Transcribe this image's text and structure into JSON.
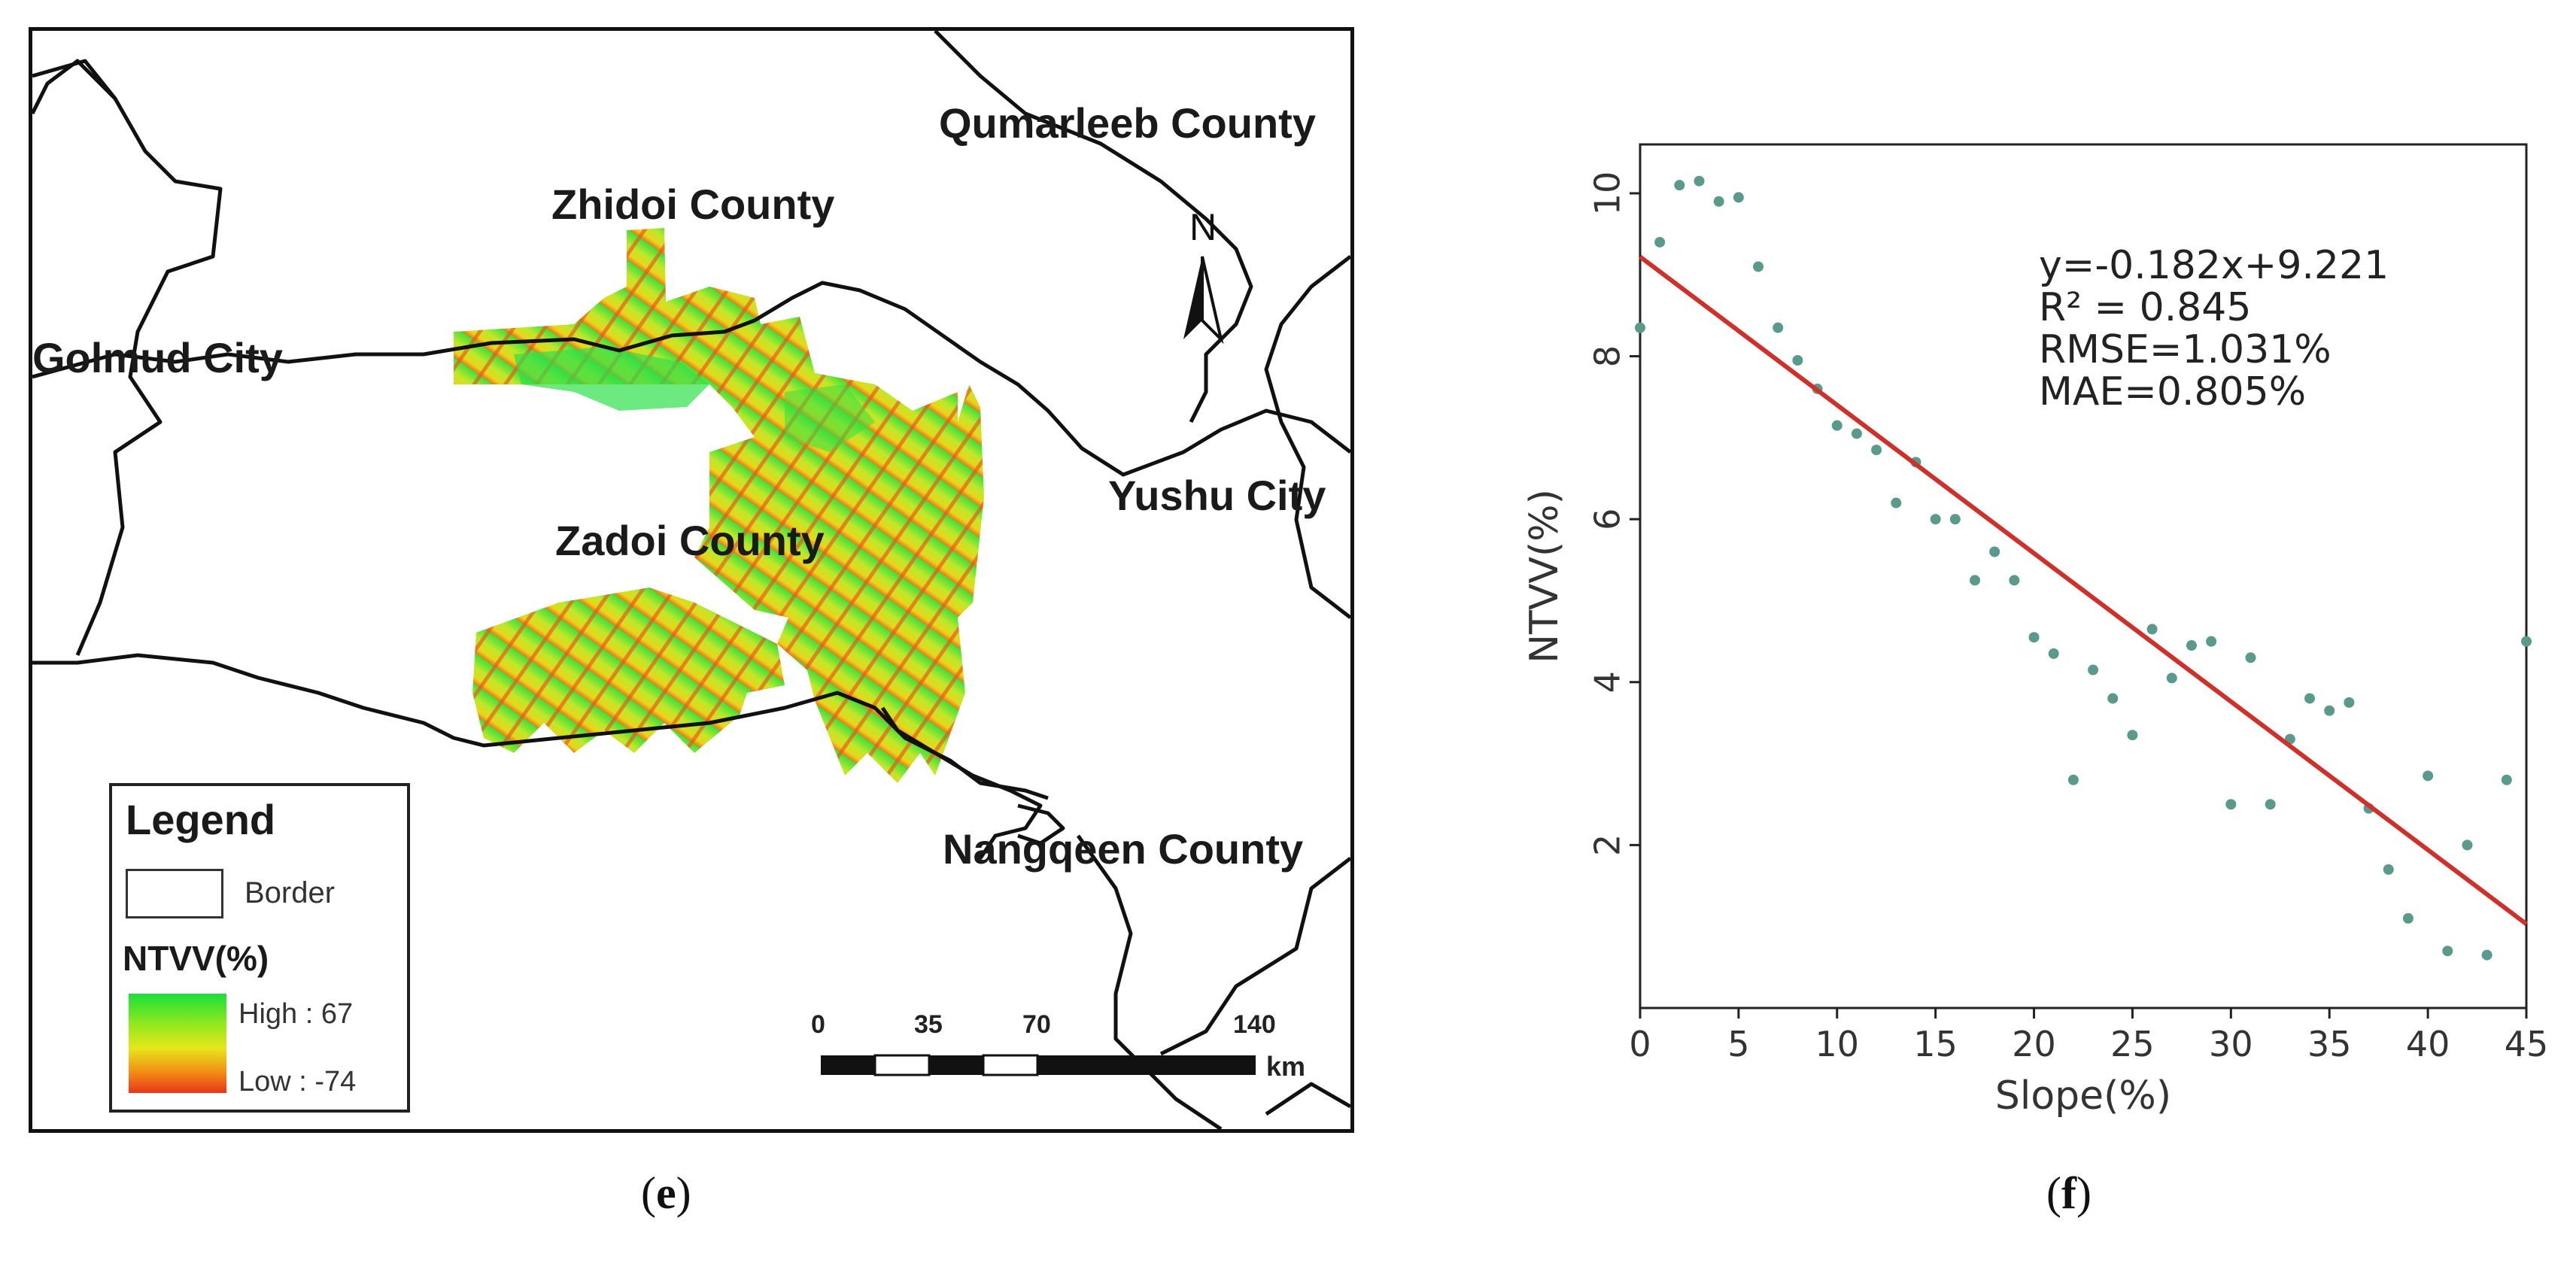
{
  "map_panel": {
    "caption_open": "(",
    "caption_letter": "e",
    "caption_close": ")",
    "places": {
      "qumarleb": "Qumarleeb County",
      "zhidoi": "Zhidoi County",
      "golmud": "Golmud City",
      "yushu": "Yushu City",
      "zadoi": "Zadoi County",
      "nangqen": "Nangqeen County"
    },
    "north_label": "N",
    "legend": {
      "title": "Legend",
      "border_label": "Border",
      "ntvv_title": "NTVV(%)",
      "high_label": "High : 67",
      "low_label": "Low : -74",
      "high_color": "#19e03a",
      "mid_color": "#e8e61a",
      "low_color": "#e8341a"
    },
    "scale_bar": {
      "ticks": [
        "0",
        "35",
        "70",
        "140"
      ],
      "unit": "km"
    }
  },
  "chart_panel": {
    "caption_open": "(",
    "caption_letter": "f",
    "caption_close": ")"
  },
  "chart_data": {
    "type": "scatter",
    "xlabel": "Slope(%)",
    "ylabel": "NTVV(%)",
    "xlim": [
      0,
      45
    ],
    "ylim": [
      0,
      10.6
    ],
    "xticks": [
      0,
      5,
      10,
      15,
      20,
      25,
      30,
      35,
      40,
      45
    ],
    "yticks": [
      2,
      4,
      6,
      8,
      10
    ],
    "grid": false,
    "annotations": [
      "y=-0.182x+9.221",
      "R² = 0.845",
      "RMSE=1.031%",
      "MAE=0.805%"
    ],
    "point_color": "#5a9a8c",
    "fit_line": {
      "slope": -0.182,
      "intercept": 9.221,
      "color": "#d0302a"
    },
    "points": [
      {
        "x": 0,
        "y": 8.35
      },
      {
        "x": 1,
        "y": 9.4
      },
      {
        "x": 2,
        "y": 10.1
      },
      {
        "x": 3,
        "y": 10.15
      },
      {
        "x": 4,
        "y": 9.9
      },
      {
        "x": 5,
        "y": 9.95
      },
      {
        "x": 6,
        "y": 9.1
      },
      {
        "x": 7,
        "y": 8.35
      },
      {
        "x": 8,
        "y": 7.95
      },
      {
        "x": 9,
        "y": 7.6
      },
      {
        "x": 10,
        "y": 7.15
      },
      {
        "x": 11,
        "y": 7.05
      },
      {
        "x": 12,
        "y": 6.85
      },
      {
        "x": 13,
        "y": 6.2
      },
      {
        "x": 14,
        "y": 6.7
      },
      {
        "x": 15,
        "y": 6.0
      },
      {
        "x": 16,
        "y": 6.0
      },
      {
        "x": 17,
        "y": 5.25
      },
      {
        "x": 18,
        "y": 5.6
      },
      {
        "x": 19,
        "y": 5.25
      },
      {
        "x": 20,
        "y": 4.55
      },
      {
        "x": 21,
        "y": 4.35
      },
      {
        "x": 22,
        "y": 2.8
      },
      {
        "x": 23,
        "y": 4.15
      },
      {
        "x": 24,
        "y": 3.8
      },
      {
        "x": 25,
        "y": 3.35
      },
      {
        "x": 26,
        "y": 4.65
      },
      {
        "x": 27,
        "y": 4.05
      },
      {
        "x": 28,
        "y": 4.45
      },
      {
        "x": 29,
        "y": 4.5
      },
      {
        "x": 30,
        "y": 2.5
      },
      {
        "x": 31,
        "y": 4.3
      },
      {
        "x": 32,
        "y": 2.5
      },
      {
        "x": 33,
        "y": 3.3
      },
      {
        "x": 34,
        "y": 3.8
      },
      {
        "x": 35,
        "y": 3.65
      },
      {
        "x": 36,
        "y": 3.75
      },
      {
        "x": 37,
        "y": 2.45
      },
      {
        "x": 38,
        "y": 1.7
      },
      {
        "x": 39,
        "y": 1.1
      },
      {
        "x": 40,
        "y": 2.85
      },
      {
        "x": 41,
        "y": 0.7
      },
      {
        "x": 42,
        "y": 2.0
      },
      {
        "x": 43,
        "y": 0.65
      },
      {
        "x": 44,
        "y": 2.8
      },
      {
        "x": 45,
        "y": 4.5
      }
    ]
  }
}
